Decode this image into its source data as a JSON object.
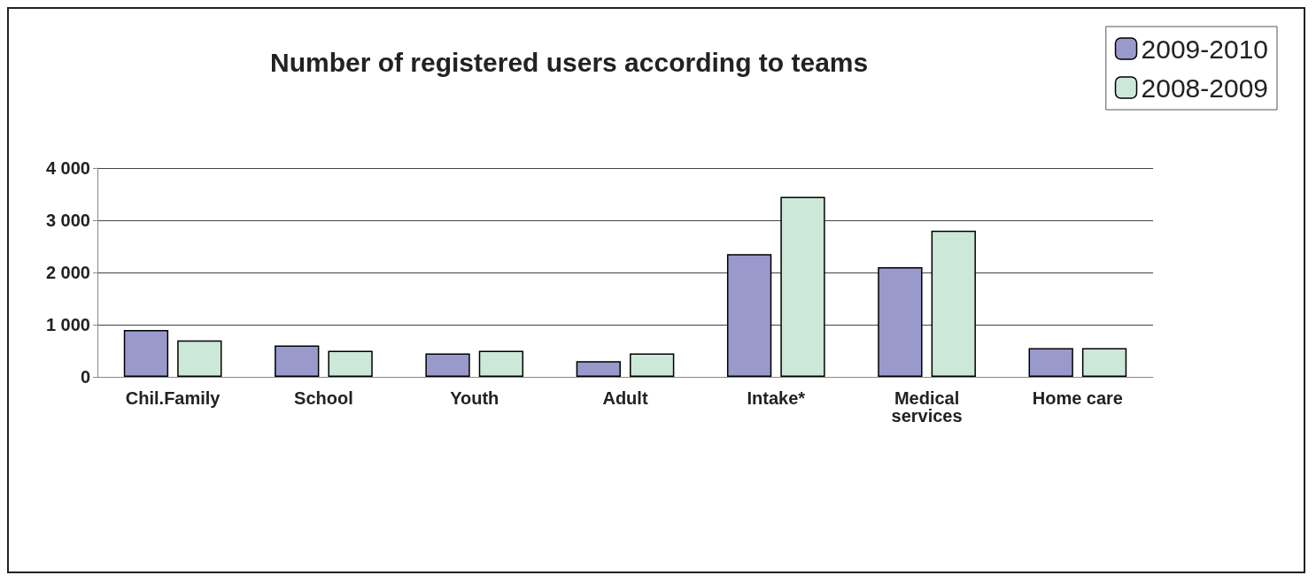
{
  "chart_data": {
    "type": "bar",
    "title": "Number of registered users according to teams",
    "categories": [
      "Chil.Family",
      "School",
      "Youth",
      "Adult",
      "Intake*",
      "Medical\nservices",
      "Home care"
    ],
    "series": [
      {
        "name": "2009-2010",
        "color": "#9999cc",
        "values": [
          900,
          600,
          450,
          300,
          2350,
          2100,
          550
        ]
      },
      {
        "name": "2008-2009",
        "color": "#cce8d8",
        "values": [
          700,
          500,
          500,
          450,
          3450,
          2800,
          550
        ]
      }
    ],
    "ylim": [
      0,
      4000
    ],
    "yticks": [
      {
        "value": 0,
        "label": "0"
      },
      {
        "value": 1000,
        "label": "1 000"
      },
      {
        "value": 2000,
        "label": "2 000"
      },
      {
        "value": 3000,
        "label": "3 000"
      },
      {
        "value": 4000,
        "label": "4 000"
      }
    ],
    "grid": true,
    "legend": "top right"
  }
}
